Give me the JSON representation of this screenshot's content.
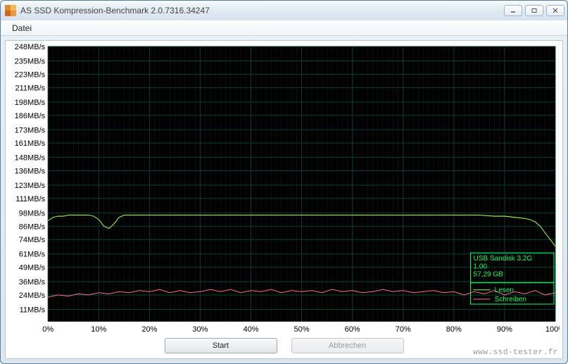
{
  "window": {
    "title": "AS SSD Kompression-Benchmark 2.0.7316.34247"
  },
  "menubar": {
    "items": [
      {
        "label": "Datei"
      }
    ]
  },
  "chart": {
    "type": "line",
    "background_color": "#000000",
    "grid_color": "#004038",
    "axis_label_color": "#000000",
    "yaxis": {
      "unit": "MB/s",
      "min": 0,
      "max": 248,
      "tick_step": 12.5,
      "tick_values": [
        11,
        24,
        36,
        49,
        61,
        74,
        86,
        98,
        111,
        123,
        136,
        148,
        161,
        173,
        186,
        198,
        211,
        223,
        235,
        248
      ],
      "label_fontsize": 11
    },
    "xaxis": {
      "min": 0,
      "max": 100,
      "unit": "%",
      "tick_step": 10,
      "tick_values": [
        0,
        10,
        20,
        30,
        40,
        50,
        60,
        70,
        80,
        90,
        100
      ],
      "minor_tick_count_per_major": 10,
      "label_fontsize": 11
    },
    "series": {
      "read": {
        "label": "Lesen",
        "color": "#a4ff4a",
        "line_width": 1,
        "x": [
          0,
          1,
          2,
          3,
          4,
          5,
          6,
          7,
          8,
          9,
          10,
          11,
          12,
          13,
          14,
          15,
          16,
          17,
          18,
          19,
          20,
          25,
          30,
          35,
          40,
          45,
          50,
          55,
          60,
          65,
          70,
          75,
          80,
          85,
          88,
          90,
          92,
          94,
          95,
          96,
          97,
          98,
          99,
          100
        ],
        "y": [
          91,
          94,
          95,
          95,
          96,
          96,
          96,
          96,
          96,
          95,
          92,
          86,
          84,
          88,
          94,
          96,
          96,
          96,
          96,
          96,
          96,
          96,
          96,
          96,
          96,
          96,
          96,
          96,
          96,
          96,
          96,
          96,
          96,
          96,
          95,
          95,
          94,
          93,
          92,
          90,
          86,
          80,
          74,
          68
        ]
      },
      "write": {
        "label": "Schreiben",
        "color": "#ff6a8a",
        "line_width": 1,
        "x": [
          0,
          2,
          4,
          6,
          8,
          10,
          12,
          14,
          16,
          18,
          20,
          22,
          24,
          26,
          28,
          30,
          32,
          34,
          36,
          38,
          40,
          42,
          44,
          46,
          48,
          50,
          52,
          54,
          56,
          58,
          60,
          62,
          64,
          66,
          68,
          70,
          72,
          74,
          76,
          78,
          80,
          82,
          84,
          86,
          88,
          90,
          92,
          94,
          96,
          98,
          100
        ],
        "y": [
          22,
          24,
          23,
          25,
          24,
          26,
          25,
          27,
          26,
          28,
          27,
          29,
          26,
          28,
          26,
          27,
          29,
          27,
          29,
          26,
          28,
          27,
          29,
          26,
          28,
          27,
          28,
          26,
          29,
          27,
          28,
          26,
          27,
          29,
          27,
          28,
          26,
          27,
          28,
          26,
          27,
          24,
          27,
          25,
          28,
          24,
          27,
          25,
          28,
          24,
          26
        ]
      }
    },
    "info_box": {
      "border_color": "#00ff66",
      "text_color": "#00ff66",
      "lines": [
        "USB  Sandisk 3.2G",
        "1.00",
        "57,29 GB"
      ],
      "fontsize": 10
    },
    "legend": {
      "read_label": "Lesen",
      "write_label": "Schreiben",
      "fontsize": 10
    }
  },
  "buttons": {
    "start_label": "Start",
    "abort_label": "Abbrechen"
  },
  "watermark": "www.ssd-tester.fr"
}
